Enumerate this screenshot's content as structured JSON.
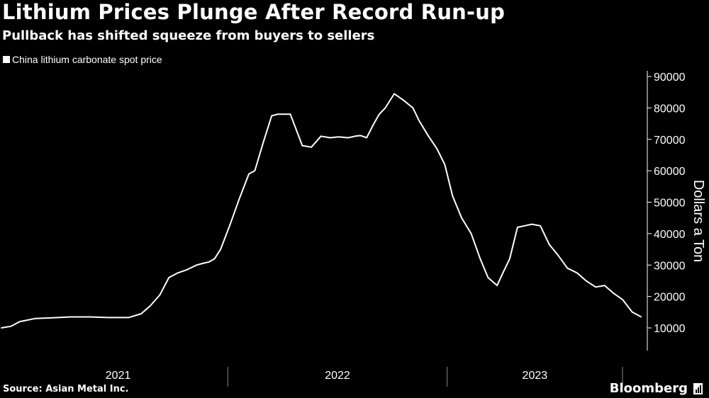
{
  "title": "Lithium Prices Plunge After Record Run-up",
  "subtitle": "Pullback has shifted squeeze from buyers to sellers",
  "legend": {
    "label": "China lithium carbonate spot price",
    "color": "#ffffff"
  },
  "source": "Source: Asian Metal Inc.",
  "brand": "Bloomberg",
  "colors": {
    "background": "#000000",
    "line": "#ffffff",
    "text": "#ffffff",
    "axis": "#ffffff"
  },
  "chart_data": {
    "type": "line",
    "title": "Lithium Prices Plunge After Record Run-up",
    "subtitle": "Pullback has shifted squeeze from buyers to sellers",
    "ylabel": "Dollars a Ton",
    "ylim": [
      0,
      90000
    ],
    "yaxis_position": "right",
    "yticks": [
      10000,
      20000,
      30000,
      40000,
      50000,
      60000,
      70000,
      80000,
      90000
    ],
    "ytick_labels": [
      "10000",
      "20000",
      "30000",
      "40000",
      "50000",
      "60000",
      "70000",
      "80000",
      "90000"
    ],
    "xlim": [
      "2020-12-18",
      "2023-11-30"
    ],
    "xticks": [
      "2021",
      "2022",
      "2023"
    ],
    "grid": false,
    "legend_position": "top-left",
    "series": [
      {
        "name": "China lithium carbonate spot price",
        "color": "#ffffff",
        "x": [
          "2020-12-20",
          "2021-01-05",
          "2021-01-20",
          "2021-02-15",
          "2021-03-15",
          "2021-04-15",
          "2021-05-15",
          "2021-06-15",
          "2021-07-01",
          "2021-07-20",
          "2021-08-10",
          "2021-08-25",
          "2021-09-10",
          "2021-09-25",
          "2021-10-10",
          "2021-10-25",
          "2021-11-10",
          "2021-11-20",
          "2021-12-01",
          "2021-12-10",
          "2021-12-20",
          "2022-01-05",
          "2022-01-20",
          "2022-02-05",
          "2022-02-15",
          "2022-03-01",
          "2022-03-15",
          "2022-03-25",
          "2022-04-05",
          "2022-04-15",
          "2022-05-05",
          "2022-05-20",
          "2022-06-05",
          "2022-06-20",
          "2022-07-05",
          "2022-07-20",
          "2022-08-01",
          "2022-08-10",
          "2022-08-20",
          "2022-09-01",
          "2022-09-10",
          "2022-09-20",
          "2022-10-05",
          "2022-10-20",
          "2022-11-05",
          "2022-11-15",
          "2022-12-01",
          "2022-12-15",
          "2022-12-28",
          "2023-01-10",
          "2023-01-25",
          "2023-02-10",
          "2023-02-25",
          "2023-03-10",
          "2023-03-25",
          "2023-04-05",
          "2023-04-15",
          "2023-04-28",
          "2023-05-10",
          "2023-05-22",
          "2023-06-05",
          "2023-06-20",
          "2023-07-05",
          "2023-07-20",
          "2023-08-05",
          "2023-08-20",
          "2023-09-05",
          "2023-09-20",
          "2023-10-05",
          "2023-10-20",
          "2023-11-05",
          "2023-11-20"
        ],
        "values": [
          10000,
          10500,
          12000,
          13000,
          13200,
          13500,
          13500,
          13300,
          13300,
          13300,
          14500,
          17000,
          20500,
          26000,
          27500,
          28500,
          30000,
          30500,
          31000,
          32000,
          35000,
          43000,
          51000,
          59000,
          60000,
          69000,
          77500,
          78000,
          78000,
          78000,
          68000,
          67500,
          71000,
          70500,
          70800,
          70500,
          71000,
          71200,
          70500,
          75000,
          78000,
          80000,
          84500,
          82500,
          80000,
          76000,
          71000,
          67000,
          62000,
          52000,
          45000,
          40000,
          32000,
          26000,
          23500,
          28000,
          32000,
          42000,
          42500,
          43000,
          42500,
          36500,
          33000,
          29000,
          27500,
          25000,
          23000,
          23500,
          21000,
          19000,
          15000,
          13500
        ]
      }
    ]
  }
}
